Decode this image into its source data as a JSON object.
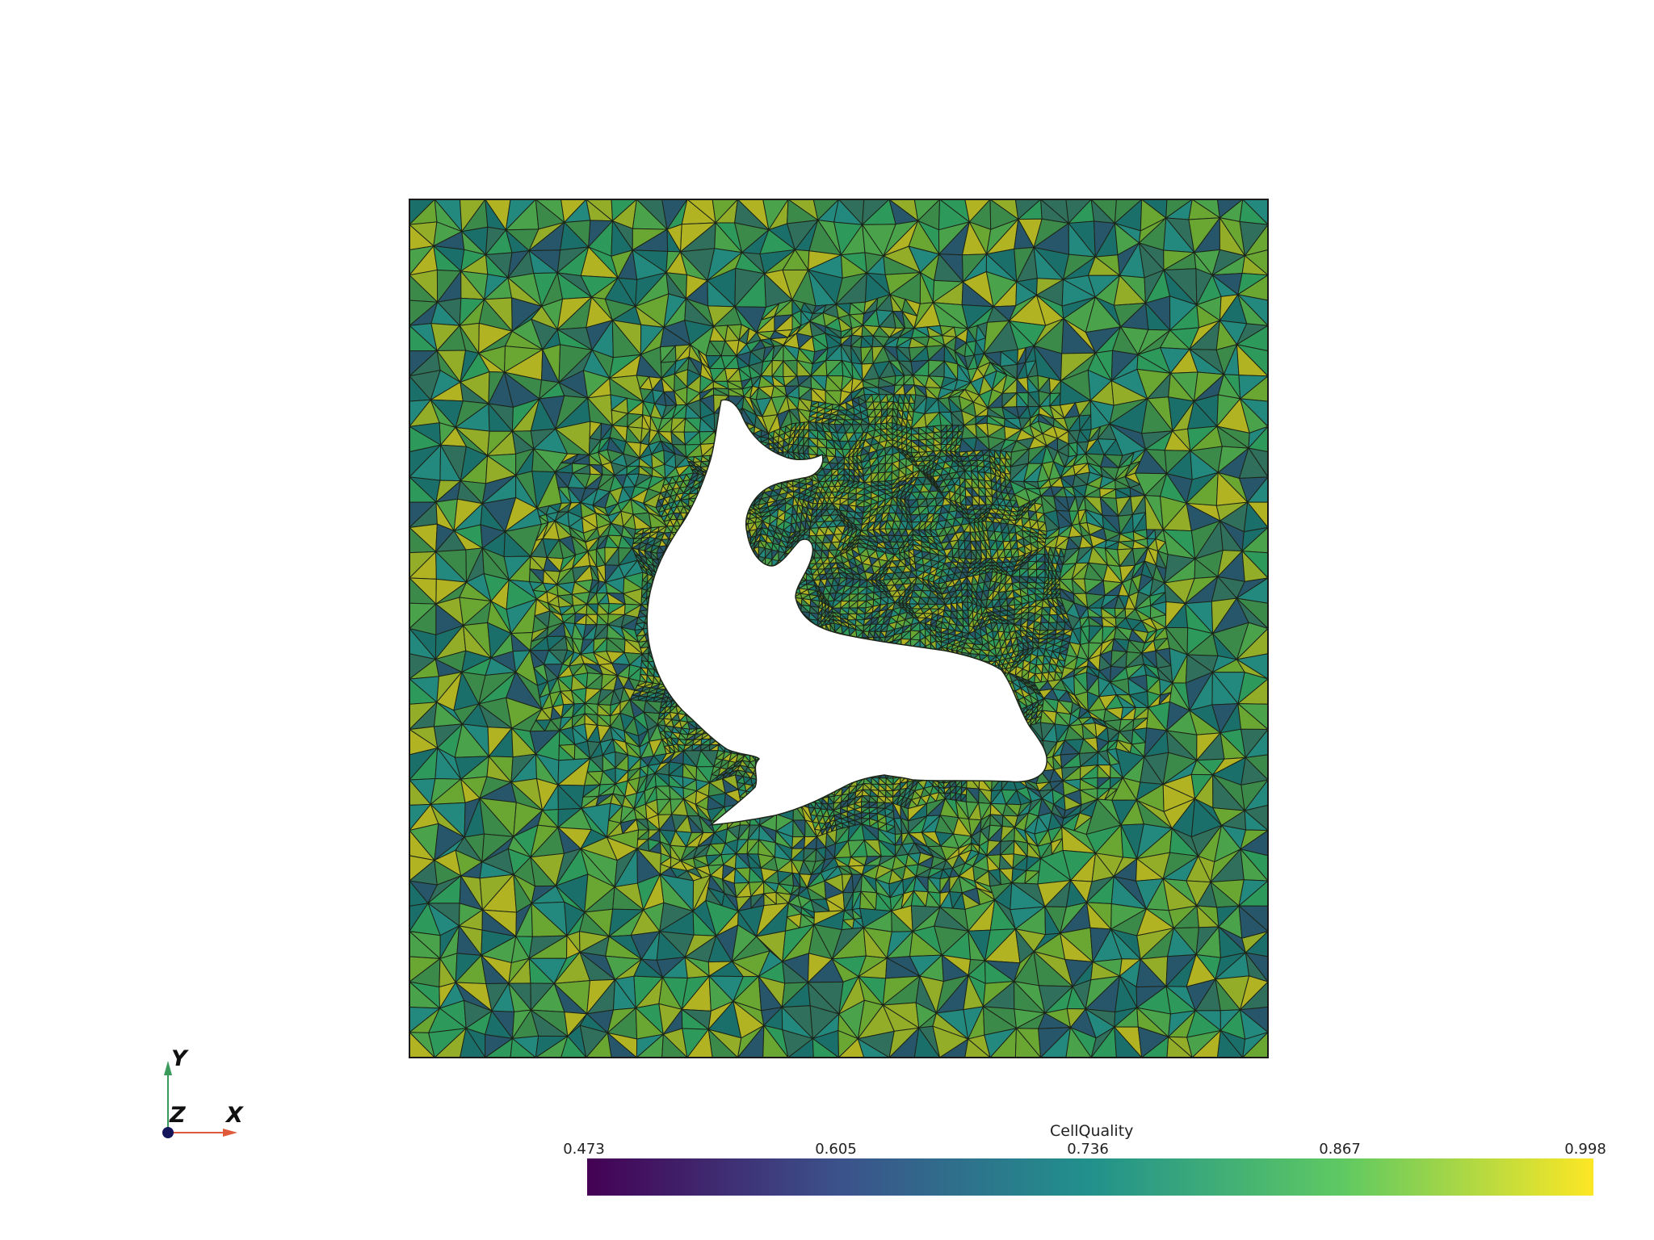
{
  "scene": {
    "kind": "triangulated-mesh",
    "shape_in_hole": "dolphin",
    "background": "#ffffff",
    "mesh_border_color": "#1a1a1a",
    "edge_color": "#1c2418"
  },
  "scalar_bar": {
    "title": "CellQuality",
    "ticks": [
      "0.473",
      "0.605",
      "0.736",
      "0.867",
      "0.998"
    ],
    "range": [
      0.473,
      0.998
    ],
    "colormap": "viridis",
    "stops": [
      "#440154",
      "#3b528b",
      "#21918c",
      "#5ec962",
      "#fde725"
    ]
  },
  "axes": {
    "x_label": "X",
    "y_label": "Y",
    "z_label": "Z",
    "x_color": "#e05a3a",
    "y_color": "#3a9a5a",
    "z_color": "#14145a"
  },
  "palette": [
    "#1b6f6a",
    "#23897f",
    "#2d9a5c",
    "#4aa24a",
    "#6aa632",
    "#94ad28",
    "#b1b322",
    "#3c8a4a",
    "#27566a",
    "#2f6f5c"
  ]
}
